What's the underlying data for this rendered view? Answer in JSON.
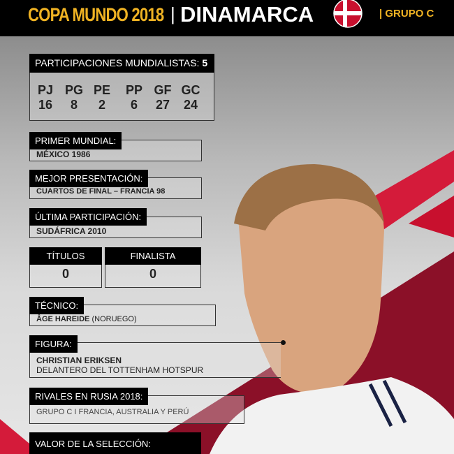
{
  "header": {
    "tournament": "COPA MUNDO 2018",
    "separator": "|",
    "country": "DINAMARCA",
    "group": "| GRUPO C",
    "flag_colors": {
      "red": "#c8102e",
      "white": "#ffffff"
    }
  },
  "colors": {
    "gold": "#f0b323",
    "dark_red": "#8b1028",
    "red": "#d41b3a"
  },
  "participaciones": {
    "label": "PARTICIPACIONES MUNDIALISTAS:",
    "value": "5",
    "stats": [
      {
        "k": "PJ",
        "v": "16"
      },
      {
        "k": "PG",
        "v": "8"
      },
      {
        "k": "PE",
        "v": "2"
      },
      {
        "k": "PP",
        "v": "6"
      },
      {
        "k": "GF",
        "v": "27"
      },
      {
        "k": "GC",
        "v": "24"
      }
    ]
  },
  "primer_mundial": {
    "label": "PRIMER MUNDIAL:",
    "value": "MÉXICO 1986"
  },
  "mejor_presentacion": {
    "label": "MEJOR PRESENTACIÓN:",
    "value": "CUARTOS DE FINAL – FRANCIA 98"
  },
  "ultima_participacion": {
    "label": "ÚLTIMA PARTICIPACIÓN:",
    "value": "SUDÁFRICA 2010"
  },
  "titulos": {
    "label": "TÍTULOS",
    "value": "0"
  },
  "finalista": {
    "label": "FINALISTA",
    "value": "0"
  },
  "tecnico": {
    "label": "TÉCNICO:",
    "name": "ÅGE HAREIDE",
    "nationality": " (NORUEGO)"
  },
  "figura": {
    "label": "FIGURA:",
    "name": "CHRISTIAN ERIKSEN",
    "description": "DELANTERO DEL TOTTENHAM HOTSPUR"
  },
  "rivales": {
    "label": "RIVALES EN RUSIA 2018:",
    "value": "GRUPO C I FRANCIA, AUSTRALIA Y PERÚ"
  },
  "valor": {
    "label": "VALOR DE LA SELECCIÓN:"
  }
}
